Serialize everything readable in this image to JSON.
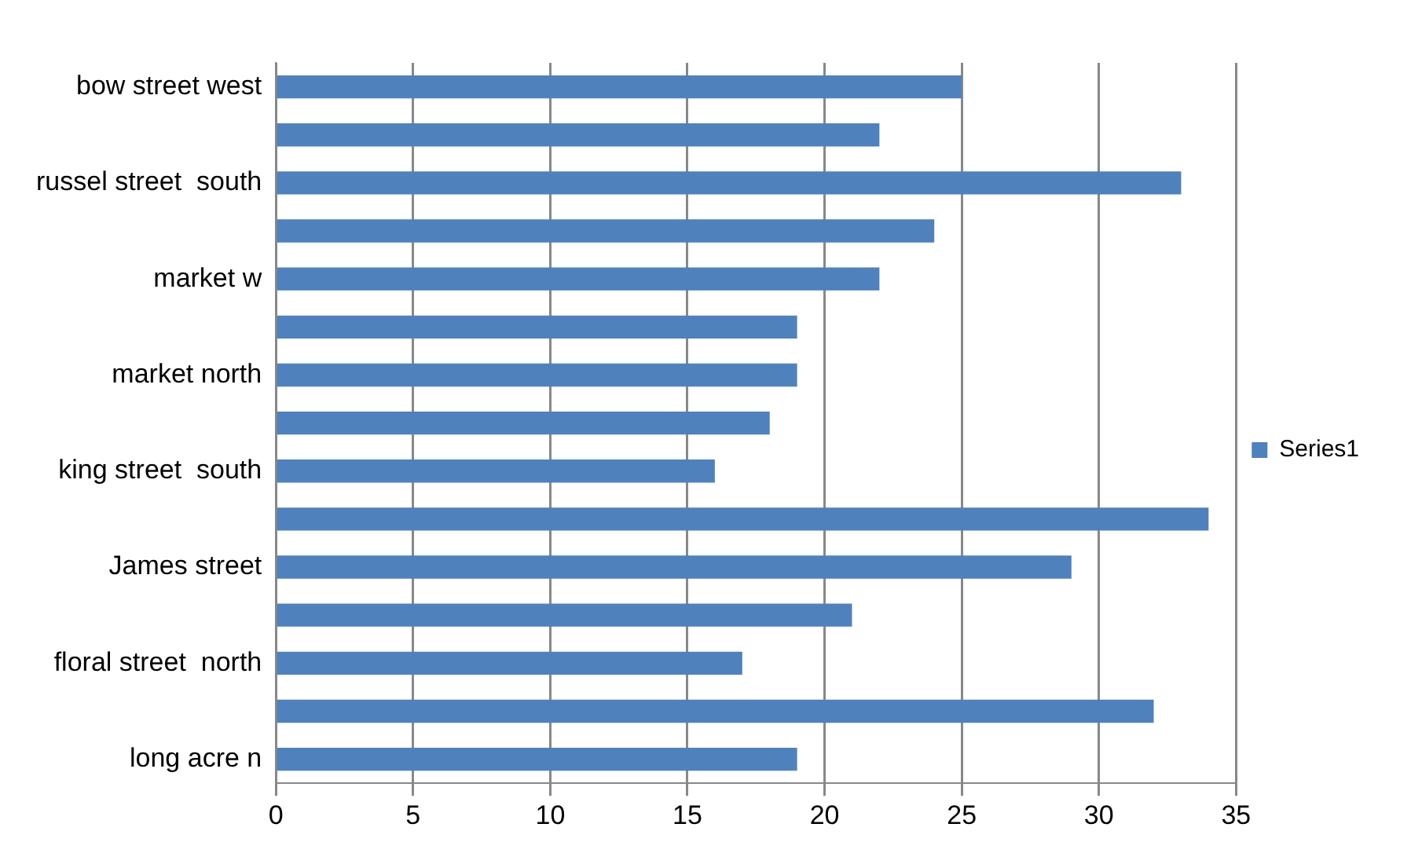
{
  "chart_data": {
    "type": "bar",
    "orientation": "horizontal",
    "categories": [
      "bow street west",
      null,
      "russel street  south",
      null,
      "market w",
      null,
      "market north",
      null,
      "king street  south",
      null,
      "James street",
      null,
      "floral street  north",
      null,
      "long acre n"
    ],
    "series": [
      {
        "name": "Series1",
        "color": "#4f81bd",
        "values": [
          25,
          22,
          33,
          24,
          22,
          19,
          19,
          18,
          16,
          34,
          29,
          21,
          17,
          32,
          19
        ]
      }
    ],
    "xlim": [
      0,
      35
    ],
    "xticks": [
      0,
      5,
      10,
      15,
      20,
      25,
      30,
      35
    ],
    "grid": "x",
    "legend": "right"
  }
}
